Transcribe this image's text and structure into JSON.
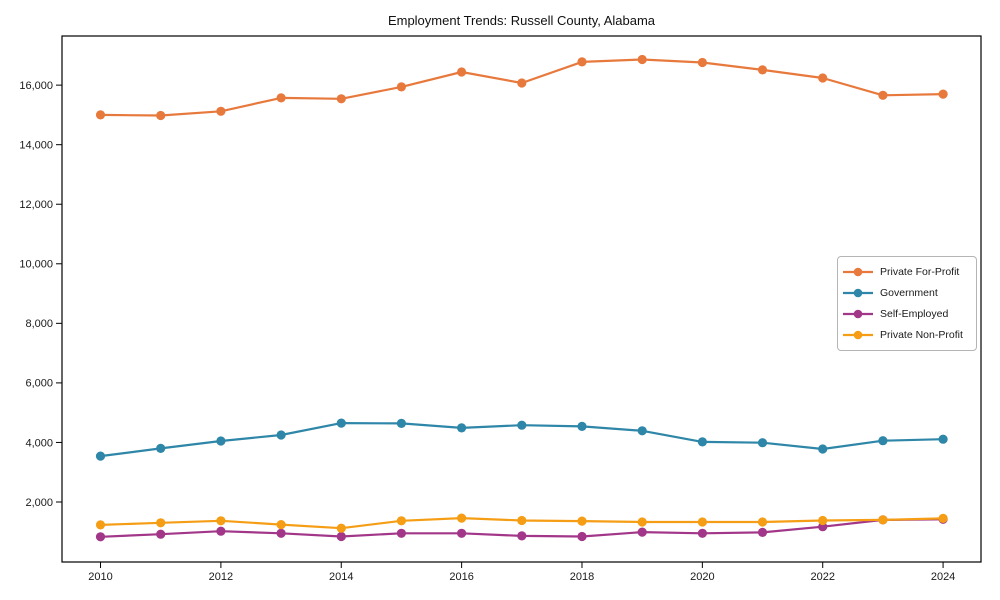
{
  "chart_data": {
    "type": "line",
    "title": "Employment Trends: Russell County, Alabama",
    "xlabel": "",
    "ylabel": "",
    "grid": false,
    "legend_position": "right",
    "background_color": "#ffffff",
    "spine_color": "#000000",
    "text_color": "#1a1a1a",
    "xlim": [
      2009.36,
      2024.63
    ],
    "ylim": [
      -15,
      17650
    ],
    "x": [
      2010,
      2011,
      2012,
      2013,
      2014,
      2015,
      2016,
      2017,
      2018,
      2019,
      2020,
      2021,
      2022,
      2023,
      2024
    ],
    "xticks": [
      {
        "value": 2010,
        "label": "2010"
      },
      {
        "value": 2012,
        "label": "2012"
      },
      {
        "value": 2014,
        "label": "2014"
      },
      {
        "value": 2016,
        "label": "2016"
      },
      {
        "value": 2018,
        "label": "2018"
      },
      {
        "value": 2020,
        "label": "2020"
      },
      {
        "value": 2022,
        "label": "2022"
      },
      {
        "value": 2024,
        "label": "2024"
      }
    ],
    "yticks": [
      {
        "value": 2000,
        "label": "2,000"
      },
      {
        "value": 4000,
        "label": "4,000"
      },
      {
        "value": 6000,
        "label": "6,000"
      },
      {
        "value": 8000,
        "label": "8,000"
      },
      {
        "value": 10000,
        "label": "10,000"
      },
      {
        "value": 12000,
        "label": "12,000"
      },
      {
        "value": 14000,
        "label": "14,000"
      },
      {
        "value": 16000,
        "label": "16,000"
      }
    ],
    "series": [
      {
        "name": "Private For-Profit",
        "color": "#E8793D",
        "values": [
          15000,
          14980,
          15120,
          15570,
          15540,
          15940,
          16440,
          16070,
          16780,
          16860,
          16760,
          16510,
          16240,
          15660,
          15700
        ]
      },
      {
        "name": "Government",
        "color": "#2E86A8",
        "values": [
          3540,
          3800,
          4050,
          4250,
          4650,
          4640,
          4490,
          4580,
          4540,
          4390,
          4020,
          3990,
          3780,
          4060,
          4110
        ]
      },
      {
        "name": "Self-Employed",
        "color": "#A23689",
        "values": [
          830,
          920,
          1020,
          950,
          840,
          950,
          950,
          860,
          840,
          990,
          950,
          980,
          1170,
          1400,
          1420
        ]
      },
      {
        "name": "Private Non-Profit",
        "color": "#F59E15",
        "values": [
          1230,
          1300,
          1370,
          1240,
          1120,
          1370,
          1460,
          1380,
          1360,
          1330,
          1330,
          1330,
          1380,
          1400,
          1450
        ]
      }
    ]
  }
}
